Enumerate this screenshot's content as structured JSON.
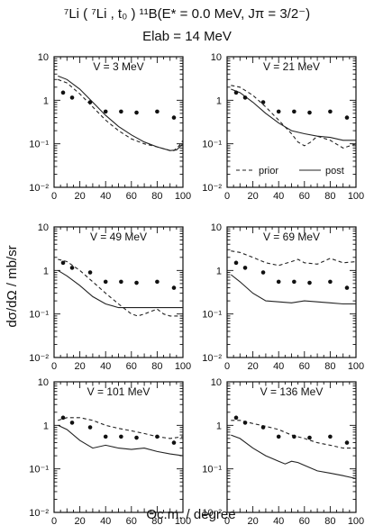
{
  "header": {
    "reaction": "⁷Li ( ⁷Li , t₀ ) ¹¹B(E* = 0.0 MeV, Jπ = 3/2⁻)",
    "energy": "Elab = 14 MeV"
  },
  "labels": {
    "ylabel": "dσ/dΩ  /  mb/sr",
    "xlabel": "Θc.m. / degree"
  },
  "legend": {
    "prior": "prior",
    "post": "post"
  },
  "chart_data": [
    {
      "type": "line",
      "panel": "V = 3 MeV",
      "title": "V = 3 MeV",
      "xlim": [
        0,
        100
      ],
      "ylim": [
        0.01,
        10
      ],
      "yscale": "log",
      "xticks": [
        "0",
        "20",
        "40",
        "60",
        "80",
        "100"
      ],
      "yticks": [
        "10⁻²",
        "10⁻¹",
        "1",
        "10"
      ],
      "data_points": {
        "x": [
          7,
          14,
          28,
          40,
          52,
          64,
          80,
          93
        ],
        "y": [
          1.5,
          1.15,
          0.9,
          0.55,
          0.55,
          0.52,
          0.55,
          0.4
        ]
      },
      "series": [
        {
          "name": "prior",
          "x": [
            3,
            10,
            20,
            30,
            40,
            50,
            60,
            70,
            80,
            90,
            93,
            97,
            100
          ],
          "y": [
            3.0,
            2.5,
            1.4,
            0.7,
            0.35,
            0.2,
            0.13,
            0.1,
            0.085,
            0.07,
            0.07,
            0.09,
            0.12
          ]
        },
        {
          "name": "post",
          "x": [
            3,
            10,
            20,
            30,
            40,
            50,
            60,
            70,
            80,
            90,
            95,
            100
          ],
          "y": [
            3.6,
            3.0,
            1.8,
            0.9,
            0.45,
            0.25,
            0.16,
            0.11,
            0.085,
            0.07,
            0.072,
            0.1
          ]
        }
      ]
    },
    {
      "type": "line",
      "panel": "V = 21 MeV",
      "title": "V = 21 MeV",
      "xlim": [
        0,
        100
      ],
      "ylim": [
        0.01,
        10
      ],
      "yscale": "log",
      "xticks": [
        "0",
        "20",
        "40",
        "60",
        "80",
        "100"
      ],
      "yticks": [
        "10⁻²",
        "10⁻¹",
        "1",
        "10"
      ],
      "data_points": {
        "x": [
          7,
          14,
          28,
          40,
          52,
          64,
          80,
          93
        ],
        "y": [
          1.5,
          1.15,
          0.9,
          0.55,
          0.55,
          0.52,
          0.55,
          0.4
        ]
      },
      "series": [
        {
          "name": "prior",
          "x": [
            3,
            10,
            20,
            30,
            40,
            50,
            55,
            60,
            65,
            70,
            80,
            90,
            100
          ],
          "y": [
            2.2,
            2.0,
            1.3,
            0.7,
            0.35,
            0.17,
            0.11,
            0.09,
            0.11,
            0.15,
            0.12,
            0.08,
            0.1
          ]
        },
        {
          "name": "post",
          "x": [
            3,
            10,
            20,
            30,
            40,
            50,
            60,
            70,
            80,
            90,
            100
          ],
          "y": [
            1.8,
            1.5,
            0.9,
            0.5,
            0.3,
            0.2,
            0.17,
            0.15,
            0.14,
            0.12,
            0.12
          ]
        }
      ]
    },
    {
      "type": "line",
      "panel": "V = 49 MeV",
      "title": "V = 49 MeV",
      "xlim": [
        0,
        100
      ],
      "ylim": [
        0.01,
        10
      ],
      "yscale": "log",
      "xticks": [
        "0",
        "20",
        "40",
        "60",
        "80",
        "100"
      ],
      "yticks": [
        "10⁻²",
        "10⁻¹",
        "1",
        "10"
      ],
      "data_points": {
        "x": [
          7,
          14,
          28,
          40,
          52,
          64,
          80,
          93
        ],
        "y": [
          1.5,
          1.15,
          0.9,
          0.55,
          0.55,
          0.52,
          0.55,
          0.4
        ]
      },
      "series": [
        {
          "name": "prior",
          "x": [
            3,
            10,
            20,
            30,
            40,
            50,
            60,
            65,
            70,
            80,
            85,
            90,
            100
          ],
          "y": [
            1.8,
            1.6,
            1.0,
            0.55,
            0.3,
            0.17,
            0.1,
            0.09,
            0.1,
            0.13,
            0.1,
            0.09,
            0.09
          ]
        },
        {
          "name": "post",
          "x": [
            3,
            10,
            20,
            30,
            40,
            50,
            60,
            70,
            80,
            90,
            100
          ],
          "y": [
            1.0,
            0.75,
            0.45,
            0.25,
            0.17,
            0.14,
            0.14,
            0.14,
            0.14,
            0.14,
            0.14
          ]
        }
      ]
    },
    {
      "type": "line",
      "panel": "V = 69 MeV",
      "title": "V = 69 MeV",
      "xlim": [
        0,
        100
      ],
      "ylim": [
        0.01,
        10
      ],
      "yscale": "log",
      "xticks": [
        "0",
        "20",
        "40",
        "60",
        "80",
        "100"
      ],
      "yticks": [
        "10⁻²",
        "10⁻¹",
        "1",
        "10"
      ],
      "data_points": {
        "x": [
          7,
          14,
          28,
          40,
          52,
          64,
          80,
          93
        ],
        "y": [
          1.5,
          1.15,
          0.9,
          0.55,
          0.55,
          0.52,
          0.55,
          0.4
        ]
      },
      "series": [
        {
          "name": "prior",
          "x": [
            3,
            10,
            20,
            30,
            40,
            50,
            55,
            60,
            70,
            80,
            90,
            100
          ],
          "y": [
            2.8,
            2.6,
            2.0,
            1.5,
            1.3,
            1.6,
            1.8,
            1.5,
            1.4,
            1.9,
            1.5,
            1.6
          ]
        },
        {
          "name": "post",
          "x": [
            3,
            10,
            20,
            30,
            40,
            50,
            60,
            70,
            80,
            90,
            100
          ],
          "y": [
            0.8,
            0.55,
            0.3,
            0.2,
            0.19,
            0.18,
            0.2,
            0.19,
            0.18,
            0.17,
            0.17
          ]
        }
      ]
    },
    {
      "type": "line",
      "panel": "V = 101 MeV",
      "title": "V = 101 MeV",
      "xlim": [
        0,
        100
      ],
      "ylim": [
        0.01,
        10
      ],
      "yscale": "log",
      "xticks": [
        "0",
        "20",
        "40",
        "60",
        "80",
        "100"
      ],
      "yticks": [
        "10⁻²",
        "10⁻¹",
        "1",
        "10"
      ],
      "data_points": {
        "x": [
          7,
          14,
          28,
          40,
          52,
          64,
          80,
          93
        ],
        "y": [
          1.5,
          1.15,
          0.9,
          0.55,
          0.55,
          0.52,
          0.55,
          0.4
        ]
      },
      "series": [
        {
          "name": "prior",
          "x": [
            3,
            10,
            20,
            30,
            40,
            50,
            60,
            70,
            80,
            90,
            100
          ],
          "y": [
            1.3,
            1.5,
            1.5,
            1.3,
            1.0,
            0.85,
            0.75,
            0.65,
            0.55,
            0.5,
            0.55
          ]
        },
        {
          "name": "post",
          "x": [
            3,
            10,
            20,
            30,
            40,
            50,
            60,
            70,
            80,
            90,
            100
          ],
          "y": [
            1.0,
            0.8,
            0.45,
            0.3,
            0.35,
            0.3,
            0.28,
            0.3,
            0.25,
            0.22,
            0.2
          ]
        }
      ]
    },
    {
      "type": "line",
      "panel": "V = 136 MeV",
      "title": "V = 136 MeV",
      "xlim": [
        0,
        100
      ],
      "ylim": [
        0.01,
        10
      ],
      "yscale": "log",
      "xticks": [
        "0",
        "20",
        "40",
        "60",
        "80",
        "100"
      ],
      "yticks": [
        "10⁻²",
        "10⁻¹",
        "1",
        "10"
      ],
      "data_points": {
        "x": [
          7,
          14,
          28,
          40,
          52,
          64,
          80,
          93
        ],
        "y": [
          1.5,
          1.15,
          0.9,
          0.55,
          0.55,
          0.52,
          0.55,
          0.4
        ]
      },
      "series": [
        {
          "name": "prior",
          "x": [
            3,
            10,
            20,
            30,
            40,
            50,
            60,
            70,
            80,
            90,
            100
          ],
          "y": [
            1.3,
            1.3,
            1.1,
            0.95,
            0.8,
            0.6,
            0.5,
            0.4,
            0.35,
            0.3,
            0.3
          ]
        },
        {
          "name": "post",
          "x": [
            3,
            10,
            20,
            30,
            40,
            45,
            50,
            55,
            60,
            70,
            80,
            90,
            100
          ],
          "y": [
            0.6,
            0.5,
            0.3,
            0.2,
            0.15,
            0.13,
            0.15,
            0.14,
            0.12,
            0.09,
            0.08,
            0.07,
            0.06
          ]
        }
      ]
    }
  ]
}
